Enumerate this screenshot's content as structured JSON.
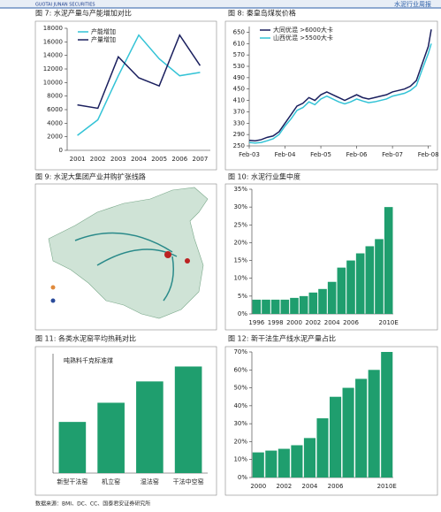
{
  "header": {
    "brand": "GUOTAI JUNAN SECURITIES",
    "report": "水泥行业周报"
  },
  "map": {
    "title": "图 9: 水泥大集团产业并购扩张线路"
  },
  "footer": "数据来源：BMI、DC、CC、国泰君安证券研究所",
  "chart_data": [
    {
      "type": "line",
      "title": "图 7: 水泥产量与产能增加对比",
      "categories": [
        "2001",
        "2002",
        "2003",
        "2004",
        "2005",
        "2006",
        "2007"
      ],
      "series": [
        {
          "name": "产能增加",
          "color": "#33c3d6",
          "values": [
            2200,
            4500,
            11000,
            17000,
            13500,
            11000,
            11500
          ]
        },
        {
          "name": "产量增加",
          "color": "#1a1f5e",
          "values": [
            6700,
            6200,
            13800,
            10700,
            9500,
            17000,
            12500
          ]
        }
      ],
      "ylim": [
        0,
        18000
      ],
      "yticks": [
        0,
        2000,
        4000,
        6000,
        8000,
        10000,
        12000,
        14000,
        16000,
        18000
      ]
    },
    {
      "type": "line",
      "title": "图 8: 秦皇岛煤炭价格",
      "x": [
        0,
        2,
        4,
        6,
        8,
        10,
        12,
        14,
        16,
        18,
        20,
        22,
        24,
        26,
        28,
        30,
        32,
        34,
        36,
        38,
        40,
        42,
        44,
        46,
        48,
        50,
        52,
        54,
        56,
        58,
        60,
        61
      ],
      "xlim": [
        0,
        61
      ],
      "xticks": [
        {
          "value": 0,
          "label": "Feb-03"
        },
        {
          "value": 12,
          "label": "Feb-04"
        },
        {
          "value": 24,
          "label": "Feb-05"
        },
        {
          "value": 36,
          "label": "Feb-06"
        },
        {
          "value": 48,
          "label": "Feb-07"
        },
        {
          "value": 60,
          "label": "Feb-08"
        }
      ],
      "series": [
        {
          "name": "大同优混 >6000大卡",
          "color": "#1a1f5e",
          "values": [
            270,
            268,
            272,
            280,
            285,
            300,
            330,
            360,
            390,
            400,
            420,
            410,
            430,
            440,
            430,
            420,
            410,
            420,
            430,
            420,
            415,
            420,
            425,
            430,
            440,
            445,
            450,
            460,
            480,
            540,
            600,
            660
          ]
        },
        {
          "name": "山西优混 >5500大卡",
          "color": "#33c3d6",
          "values": [
            262,
            260,
            262,
            268,
            275,
            290,
            320,
            345,
            375,
            385,
            405,
            395,
            415,
            425,
            415,
            405,
            398,
            405,
            415,
            408,
            402,
            405,
            410,
            415,
            425,
            430,
            435,
            445,
            462,
            520,
            575,
            610
          ]
        }
      ],
      "ylim": [
        250,
        670
      ],
      "yticks": [
        250,
        290,
        330,
        370,
        410,
        450,
        490,
        530,
        570,
        610,
        650
      ]
    },
    {
      "type": "bar",
      "title": "图 10: 水泥行业集中度",
      "color": "#1f9e6e",
      "categories": [
        "1996",
        null,
        "1998",
        null,
        "2000",
        null,
        "2002",
        null,
        "2004",
        null,
        "2006",
        null,
        null,
        null,
        "2010E"
      ],
      "values": [
        4,
        4,
        4,
        4,
        4.5,
        5,
        6,
        7,
        9,
        13,
        15,
        17,
        19,
        21,
        30
      ],
      "ylim": [
        0,
        35
      ],
      "yticks": [
        {
          "value": 0,
          "label": "0%"
        },
        {
          "value": 5,
          "label": "5%"
        },
        {
          "value": 10,
          "label": "10%"
        },
        {
          "value": 15,
          "label": "15%"
        },
        {
          "value": 20,
          "label": "20%"
        },
        {
          "value": 25,
          "label": "25%"
        },
        {
          "value": 30,
          "label": "30%"
        },
        {
          "value": 35,
          "label": "35%"
        }
      ]
    },
    {
      "type": "bar",
      "title": "图 11: 各类水泥窑平均热耗对比",
      "unit": "吨熟料千克标准煤",
      "color": "#1f9e6e",
      "categories": [
        "新型干法窑",
        "机立窑",
        "湿法窑",
        "干法中空窑"
      ],
      "values": [
        120,
        165,
        215,
        250
      ],
      "ylim": [
        0,
        280
      ]
    },
    {
      "type": "bar",
      "title": "图 12: 新干法生产线水泥产量占比",
      "color": "#1f9e6e",
      "categories": [
        "2000",
        null,
        "2002",
        null,
        "2004",
        null,
        "2006",
        null,
        null,
        null,
        "2010E"
      ],
      "values": [
        14,
        15,
        16,
        18,
        22,
        33,
        45,
        50,
        55,
        60,
        70
      ],
      "ylim": [
        0,
        70
      ],
      "yticks": [
        {
          "value": 0,
          "label": "0%"
        },
        {
          "value": 10,
          "label": "10%"
        },
        {
          "value": 20,
          "label": "20%"
        },
        {
          "value": 30,
          "label": "30%"
        },
        {
          "value": 40,
          "label": "40%"
        },
        {
          "value": 50,
          "label": "50%"
        },
        {
          "value": 60,
          "label": "60%"
        },
        {
          "value": 70,
          "label": "70%"
        }
      ]
    }
  ]
}
